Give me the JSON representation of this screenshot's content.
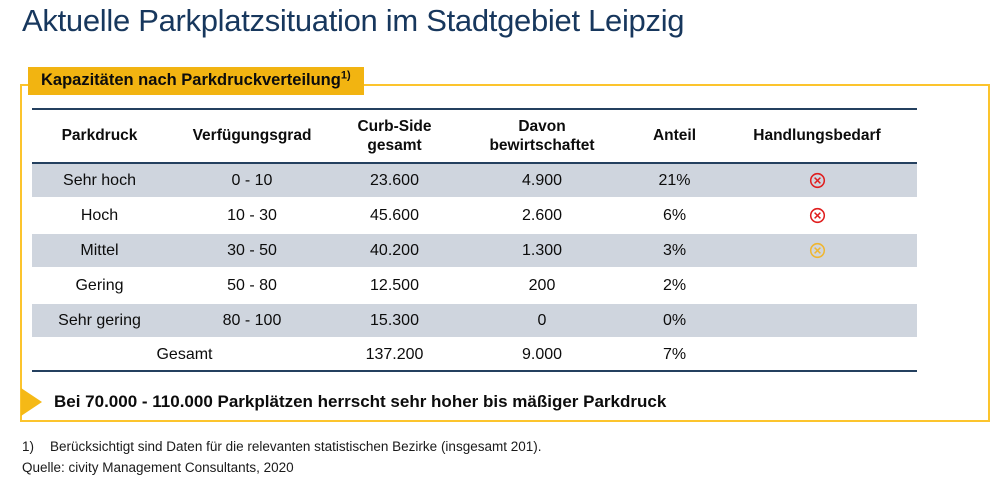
{
  "page": {
    "title": "Aktuelle Parkplatzsituation im Stadtgebiet Leipzig"
  },
  "panel": {
    "label": "Kapazitäten nach Parkdruckverteilung",
    "label_sup": "1)"
  },
  "table": {
    "columns": [
      "Parkdruck",
      "Verfügungsgrad",
      "Curb-Side\ngesamt",
      "Davon\nbewirtschaftet",
      "Anteil",
      "Handlungsbedarf"
    ],
    "rows": [
      {
        "cells": [
          "Sehr hoch",
          "0 - 10",
          "23.600",
          "4.900",
          "21%"
        ],
        "status": "red",
        "shaded": true
      },
      {
        "cells": [
          "Hoch",
          "10 - 30",
          "45.600",
          "2.600",
          "6%"
        ],
        "status": "red",
        "shaded": false
      },
      {
        "cells": [
          "Mittel",
          "30 - 50",
          "40.200",
          "1.300",
          "3%"
        ],
        "status": "amber",
        "shaded": true
      },
      {
        "cells": [
          "Gering",
          "50 - 80",
          "12.500",
          "200",
          "2%"
        ],
        "status": null,
        "shaded": false
      },
      {
        "cells": [
          "Sehr gering",
          "80 - 100",
          "15.300",
          "0",
          "0%"
        ],
        "status": null,
        "shaded": true
      }
    ],
    "total_row": {
      "label": "Gesamt",
      "values": [
        "137.200",
        "9.000",
        "7%"
      ]
    }
  },
  "summary": {
    "text": "Bei 70.000 - 110.000 Parkplätzen herrscht sehr hoher bis mäßiger Parkdruck"
  },
  "footnote": {
    "marker": "1)",
    "text": "Berücksichtigt sind Daten für die relevanten statistischen Bezirke (insgesamt 201)."
  },
  "source": "Quelle: civity Management Consultants, 2020",
  "colors": {
    "navy": "#17375D",
    "rule": "#24405F",
    "accent": "#F2B411",
    "accent_border": "#FCC42D",
    "row_shade": "#CFD5DE",
    "status_red": "#E01E1E",
    "status_amber": "#F0B62F"
  }
}
